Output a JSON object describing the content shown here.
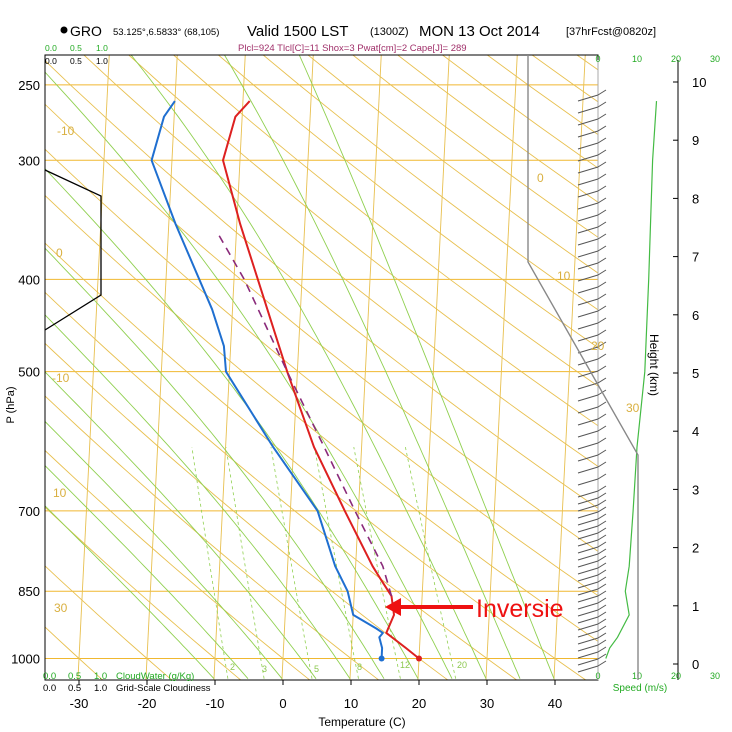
{
  "header": {
    "station": "GRO",
    "coords": "53.125°,6.5833° (68,105)",
    "valid": "Valid 1500 LST",
    "utc": "(1300Z)",
    "date": "MON 13 Oct 2014",
    "fcst": "[37hrFcst@0820z]",
    "params": "Plcl=924 Tlcl[C]=11 Shox=3 Pwat[cm]=2 Cape[J]= 289"
  },
  "labels": {
    "y_axis": "P (hPa)",
    "x_axis": "Temperature (C)",
    "height_axis": "Height (km)",
    "speed_axis": "Speed (m/s)",
    "cloudwater_label": "CloudWater (g/Kg)",
    "cloudiness_label": "Grid-Scale Cloudiness",
    "annotation": "Inversie"
  },
  "colors": {
    "isobar": "#f0b830",
    "isotherm": "#e8c050",
    "dry_adiabat": "#e8c050",
    "moist_adiabat": "#90d050",
    "mixing_ratio": "#90d050",
    "temperature": "#dd2020",
    "dewpoint": "#1f6fd0",
    "parcel": "#8a2a7a",
    "annotation": "#ee1111",
    "cloud_axis": "#22aa22"
  },
  "chart_data": {
    "type": "line",
    "title": "Valid 1500 LST (1300Z) MON 13 Oct 2014",
    "xlabel": "Temperature (C)",
    "ylabel": "P (hPa)",
    "xlim": [
      -35,
      45
    ],
    "ylim": [
      1050,
      250
    ],
    "y_scale": "log",
    "x_ticks": [
      -30,
      -20,
      -10,
      0,
      10,
      20,
      30,
      40
    ],
    "y_ticks": [
      250,
      300,
      400,
      500,
      700,
      850,
      1000
    ],
    "height_ticks": [
      0,
      1,
      2,
      3,
      4,
      5,
      6,
      7,
      8,
      9,
      10
    ],
    "speed_ticks": [
      0,
      10,
      20,
      30
    ],
    "cloud_top_ticks": [
      "0.0",
      "0.5",
      "1.0"
    ],
    "cloud_ticks": [
      "0.0",
      "0.5",
      "1.0"
    ],
    "isotherm_labels": [
      "-10",
      "0",
      "10",
      "20",
      "30"
    ],
    "theta_labels": [
      "-10",
      "0",
      "10",
      "20",
      "30"
    ],
    "mixing_ratio_labels": [
      "2",
      "3",
      "5",
      "8",
      "12",
      "20"
    ],
    "series": [
      {
        "name": "Temperature",
        "points": [
          [
            20,
            1000
          ],
          [
            18,
            975
          ],
          [
            15,
            940
          ],
          [
            16,
            900
          ],
          [
            15.5,
            860
          ],
          [
            14,
            830
          ],
          [
            12.5,
            800
          ],
          [
            8,
            700
          ],
          [
            3,
            600
          ],
          [
            -1.5,
            500
          ],
          [
            -6.5,
            400
          ],
          [
            -9.5,
            350
          ],
          [
            -12.5,
            300
          ],
          [
            -11,
            270
          ],
          [
            -9,
            260
          ]
        ]
      },
      {
        "name": "Dew point",
        "points": [
          [
            14.5,
            1000
          ],
          [
            14.5,
            975
          ],
          [
            14,
            950
          ],
          [
            14.5,
            940
          ],
          [
            13.5,
            930
          ],
          [
            10,
            900
          ],
          [
            9,
            850
          ],
          [
            7,
            800
          ],
          [
            4,
            700
          ],
          [
            -3,
            600
          ],
          [
            -10.5,
            500
          ],
          [
            -11,
            470
          ],
          [
            -13,
            430
          ],
          [
            -19,
            350
          ],
          [
            -23,
            300
          ],
          [
            -21.5,
            270
          ],
          [
            -20,
            260
          ]
        ]
      },
      {
        "name": "Parcel",
        "points": [
          [
            15.5,
            860
          ],
          [
            14,
            800
          ],
          [
            9.5,
            700
          ],
          [
            4.5,
            600
          ],
          [
            -1.5,
            500
          ],
          [
            -8.5,
            400
          ],
          [
            -12.5,
            360
          ]
        ]
      }
    ],
    "cloud_water": [
      [
        0.0,
        1050
      ],
      [
        0.0,
        250
      ]
    ],
    "wind_speed": [
      [
        2,
        1000
      ],
      [
        3,
        975
      ],
      [
        5,
        950
      ],
      [
        8,
        900
      ],
      [
        7,
        850
      ],
      [
        8,
        800
      ],
      [
        9,
        700
      ],
      [
        10,
        600
      ],
      [
        12,
        500
      ],
      [
        13,
        400
      ],
      [
        14,
        300
      ],
      [
        15,
        260
      ]
    ],
    "grid": true
  }
}
